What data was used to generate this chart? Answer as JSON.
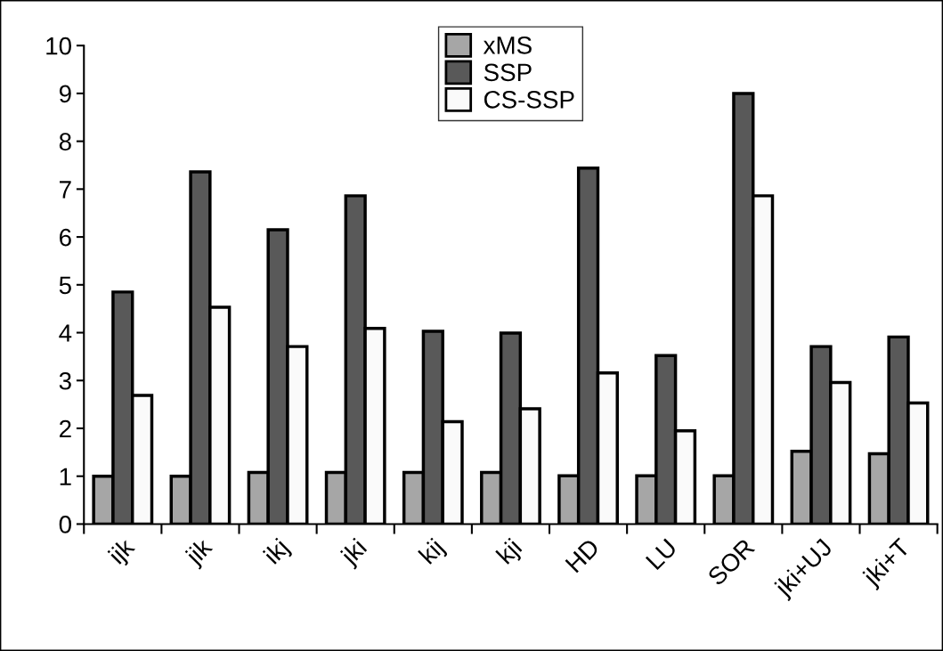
{
  "chart_data": {
    "type": "bar",
    "categories": [
      "ijk",
      "jik",
      "ikj",
      "jki",
      "kij",
      "kji",
      "HD",
      "LU",
      "SOR",
      "jki+UJ",
      "jki+T"
    ],
    "series": [
      {
        "name": "xMS",
        "color": "#a6a6a6",
        "values": [
          1.0,
          1.0,
          1.08,
          1.08,
          1.08,
          1.08,
          1.01,
          1.01,
          1.01,
          1.52,
          1.47
        ]
      },
      {
        "name": "SSP",
        "color": "#595959",
        "values": [
          4.85,
          7.36,
          6.15,
          6.86,
          4.03,
          3.99,
          7.44,
          3.52,
          9.0,
          3.71,
          3.91
        ]
      },
      {
        "name": "CS-SSP",
        "color": "#fafafa",
        "values": [
          2.69,
          4.53,
          3.71,
          4.09,
          2.14,
          2.41,
          3.16,
          1.95,
          6.86,
          2.96,
          2.53
        ]
      }
    ],
    "ylim": [
      0,
      10
    ],
    "yticks": [
      0,
      1,
      2,
      3,
      4,
      5,
      6,
      7,
      8,
      9,
      10
    ],
    "grid": false,
    "legend": "top"
  }
}
